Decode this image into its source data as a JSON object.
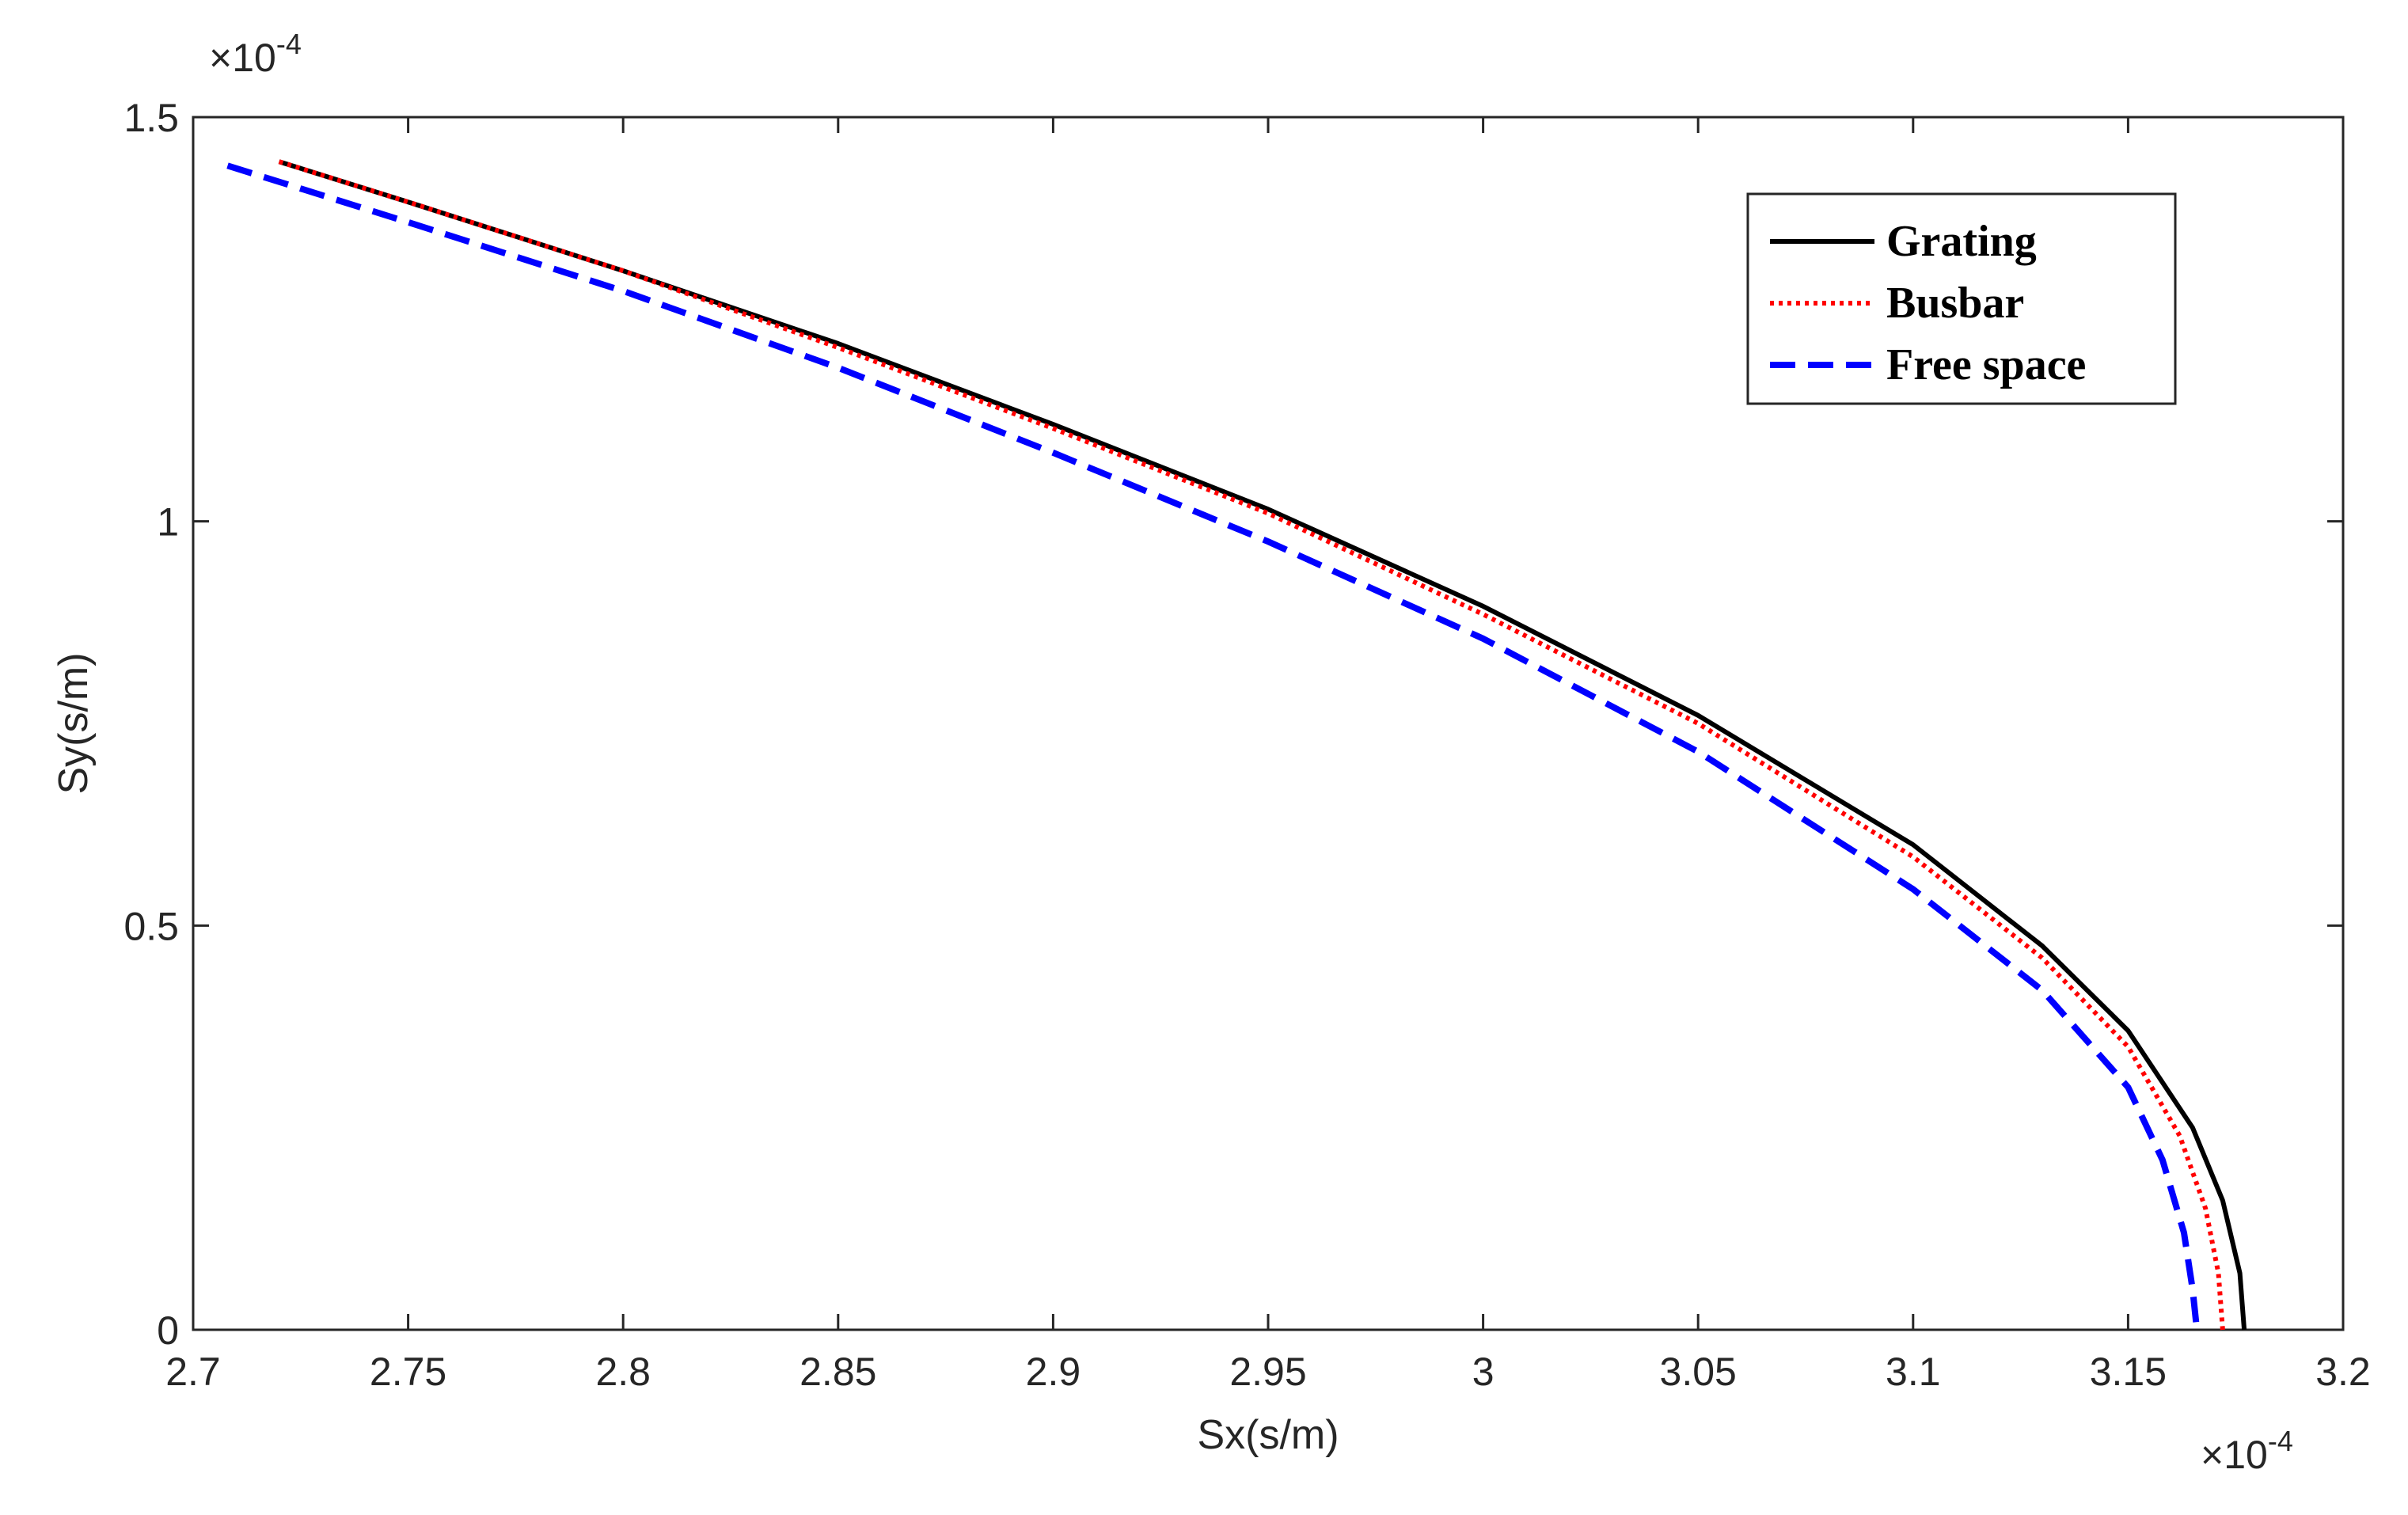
{
  "chart_data": {
    "type": "line",
    "xlabel": "Sx(s/m)",
    "ylabel": "Sy(s/m)",
    "x_exponent_label": "×10",
    "x_exponent_power": "-4",
    "y_exponent_label": "×10",
    "y_exponent_power": "-4",
    "xlim": [
      2.7,
      3.2
    ],
    "ylim": [
      0,
      1.5
    ],
    "x_ticks": [
      "2.7",
      "2.75",
      "2.8",
      "2.85",
      "2.9",
      "2.95",
      "3",
      "3.05",
      "3.1",
      "3.15",
      "3.2"
    ],
    "y_ticks": [
      "0",
      "0.5",
      "1",
      "1.5"
    ],
    "grid": false,
    "legend_position": "top-right",
    "series": [
      {
        "name": "Grating",
        "color": "#000000",
        "style": "solid",
        "x": [
          2.72,
          2.75,
          2.8,
          2.85,
          2.9,
          2.95,
          3.0,
          3.05,
          3.1,
          3.13,
          3.15,
          3.165,
          3.172,
          3.176,
          3.177
        ],
        "y": [
          1.445,
          1.395,
          1.31,
          1.22,
          1.12,
          1.015,
          0.895,
          0.76,
          0.6,
          0.475,
          0.37,
          0.25,
          0.16,
          0.07,
          0.0
        ]
      },
      {
        "name": "Busbar",
        "color": "#ff0000",
        "style": "dotted",
        "x": [
          2.72,
          2.75,
          2.8,
          2.85,
          2.9,
          2.95,
          3.0,
          3.05,
          3.1,
          3.13,
          3.15,
          3.162,
          3.168,
          3.171,
          3.172
        ],
        "y": [
          1.445,
          1.395,
          1.31,
          1.215,
          1.115,
          1.01,
          0.885,
          0.75,
          0.585,
          0.46,
          0.35,
          0.24,
          0.15,
          0.07,
          0.0
        ]
      },
      {
        "name": "Free space",
        "color": "#0000ff",
        "style": "dashed",
        "x": [
          2.708,
          2.75,
          2.8,
          2.85,
          2.9,
          2.95,
          3.0,
          3.05,
          3.1,
          3.13,
          3.15,
          3.158,
          3.163,
          3.165,
          3.166
        ],
        "y": [
          1.44,
          1.37,
          1.285,
          1.19,
          1.085,
          0.975,
          0.855,
          0.715,
          0.545,
          0.42,
          0.3,
          0.21,
          0.12,
          0.05,
          0.0
        ]
      }
    ]
  }
}
